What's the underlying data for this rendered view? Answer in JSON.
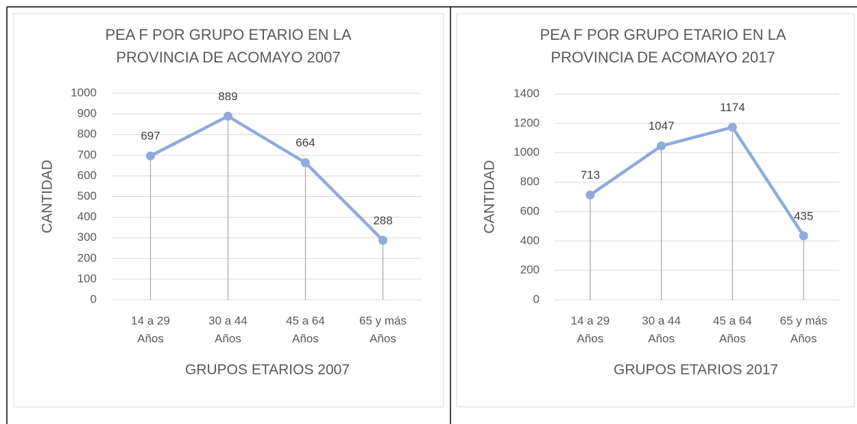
{
  "chart_data": [
    {
      "type": "line",
      "title": "PEA F POR GRUPO ETARIO EN LA PROVINCIA DE ACOMAYO 2007",
      "x_label": "GRUPOS ETARIOS 2007",
      "y_label": "CANTIDAD",
      "categories": [
        "14 a 29 Años",
        "30 a 44 Años",
        "45 a 64 Años",
        "65 y más Años"
      ],
      "values": [
        697,
        889,
        664,
        288
      ],
      "color": "#8faadc",
      "ylim": [
        0,
        1000
      ],
      "yticks": [
        0,
        100,
        200,
        300,
        400,
        500,
        600,
        700,
        800,
        900,
        1000
      ],
      "grid": true,
      "drop_lines": true
    },
    {
      "type": "line",
      "title": "PEA F POR GRUPO ETARIO EN LA PROVINCIA DE ACOMAYO 2017",
      "x_label": "GRUPOS ETARIOS 2017",
      "y_label": "CANTIDAD",
      "categories": [
        "14 a 29 Años",
        "30 a 44 Años",
        "45 a 64 Años",
        "65 y más Años"
      ],
      "values": [
        713,
        1047,
        1174,
        435
      ],
      "color": "#8faadc",
      "ylim": [
        0,
        1400
      ],
      "yticks": [
        0,
        200,
        400,
        600,
        800,
        1000,
        1200,
        1400
      ],
      "grid": true,
      "drop_lines": true
    }
  ]
}
